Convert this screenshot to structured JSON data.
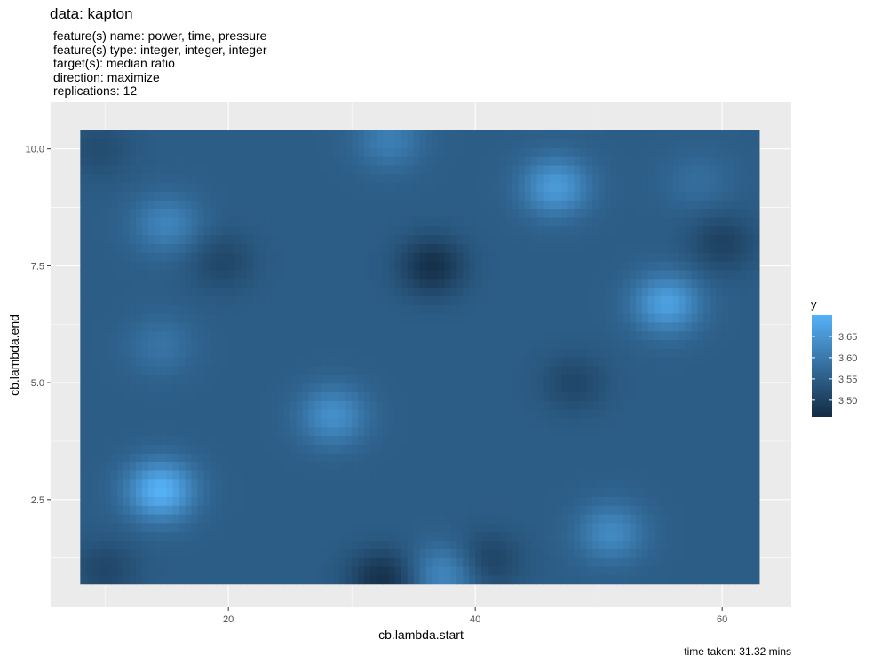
{
  "chart_data": {
    "type": "heatmap",
    "title": "data: kapton",
    "subtitle": [
      "feature(s) name: power, time, pressure",
      "feature(s) type: integer, integer, integer",
      "target(s): median ratio",
      "direction: maximize",
      "replications: 12"
    ],
    "xlabel": "cb.lambda.start",
    "ylabel": "cb.lambda.end",
    "xlim": [
      5.6,
      65.6
    ],
    "ylim": [
      0.2,
      11.0
    ],
    "data_extent": {
      "x": [
        8,
        63
      ],
      "y": [
        0.7,
        10.4
      ]
    },
    "x_ticks": [
      20,
      40,
      60
    ],
    "x_tick_labels": [
      "20",
      "40",
      "60"
    ],
    "y_ticks": [
      2.5,
      5.0,
      7.5,
      10.0
    ],
    "y_tick_labels": [
      "2.5",
      "5.0",
      "7.5",
      "10.0"
    ],
    "grid": true,
    "legend": {
      "title": "y",
      "position": "right",
      "range": [
        3.46,
        3.7
      ],
      "ticks": [
        3.5,
        3.55,
        3.6,
        3.65
      ],
      "tick_labels": [
        "3.50",
        "3.55",
        "3.60",
        "3.65"
      ],
      "color_low": "#132B43",
      "color_high": "#56B1F7"
    },
    "base_value": 3.55,
    "features": [
      {
        "x": 14.5,
        "y": 2.7,
        "value": 3.7
      },
      {
        "x": 55.5,
        "y": 6.7,
        "value": 3.67
      },
      {
        "x": 46.5,
        "y": 9.2,
        "value": 3.66
      },
      {
        "x": 28.5,
        "y": 4.3,
        "value": 3.64
      },
      {
        "x": 51,
        "y": 1.8,
        "value": 3.63
      },
      {
        "x": 37.5,
        "y": 0.9,
        "value": 3.63
      },
      {
        "x": 15,
        "y": 8.4,
        "value": 3.62
      },
      {
        "x": 33,
        "y": 10.2,
        "value": 3.61
      },
      {
        "x": 14.5,
        "y": 5.8,
        "value": 3.59
      },
      {
        "x": 58,
        "y": 9.3,
        "value": 3.58
      },
      {
        "x": 36.5,
        "y": 7.5,
        "value": 3.47
      },
      {
        "x": 32.5,
        "y": 0.8,
        "value": 3.47
      },
      {
        "x": 60,
        "y": 8.0,
        "value": 3.5
      },
      {
        "x": 19.5,
        "y": 7.6,
        "value": 3.51
      },
      {
        "x": 41,
        "y": 1.2,
        "value": 3.5
      },
      {
        "x": 10,
        "y": 1.0,
        "value": 3.51
      },
      {
        "x": 48,
        "y": 5.0,
        "value": 3.51
      },
      {
        "x": 9.5,
        "y": 10.0,
        "value": 3.52
      }
    ]
  },
  "caption": "time taken: 31.32 mins"
}
